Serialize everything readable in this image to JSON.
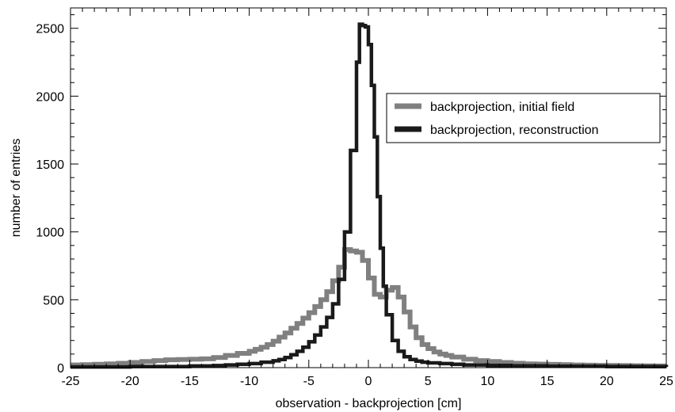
{
  "chart_data": {
    "type": "line",
    "title": "",
    "xlabel": "observation - backprojection [cm]",
    "ylabel": "number of entries",
    "xlim": [
      -25,
      25
    ],
    "ylim": [
      0,
      2650
    ],
    "x_ticks": [
      -25,
      -20,
      -15,
      -10,
      -5,
      0,
      5,
      10,
      15,
      20,
      25
    ],
    "y_ticks": [
      0,
      500,
      1000,
      1500,
      2000,
      2500
    ],
    "x_tick_labels": [
      "-25",
      "-20",
      "-15",
      "-10",
      "-5",
      "0",
      "5",
      "10",
      "15",
      "20",
      "25"
    ],
    "y_tick_labels": [
      "0",
      "500",
      "1000",
      "1500",
      "2000",
      "2500"
    ],
    "grid": false,
    "legend_position": "top-right",
    "series": [
      {
        "name": "backprojection, initial field",
        "color": "#808080",
        "step": true,
        "x": [
          -25,
          -24,
          -23,
          -22,
          -21,
          -20,
          -19,
          -18,
          -17,
          -16,
          -15,
          -14,
          -13,
          -12,
          -11,
          -10,
          -9.5,
          -9,
          -8.5,
          -8,
          -7.5,
          -7,
          -6.5,
          -6,
          -5.5,
          -5,
          -4.5,
          -4,
          -3.5,
          -3,
          -2.5,
          -2,
          -1.5,
          -1,
          -0.5,
          0,
          0.5,
          1,
          1.5,
          2,
          2.5,
          3,
          3.5,
          4,
          4.5,
          5,
          5.5,
          6,
          6.5,
          7,
          8,
          9,
          10,
          11,
          12,
          13,
          14,
          15,
          16,
          17,
          18,
          19,
          20,
          21,
          22,
          23,
          24,
          25
        ],
        "y": [
          20,
          22,
          25,
          28,
          32,
          38,
          45,
          52,
          58,
          60,
          62,
          65,
          75,
          90,
          105,
          120,
          135,
          150,
          170,
          195,
          225,
          255,
          290,
          325,
          365,
          405,
          450,
          500,
          560,
          640,
          740,
          870,
          860,
          850,
          790,
          660,
          540,
          520,
          570,
          590,
          520,
          410,
          300,
          220,
          170,
          140,
          115,
          100,
          90,
          78,
          62,
          52,
          45,
          38,
          32,
          28,
          26,
          24,
          22,
          20,
          18,
          17,
          16,
          15,
          14,
          13,
          12,
          12
        ]
      },
      {
        "name": "backprojection, reconstruction",
        "color": "#1a1a1a",
        "step": true,
        "x": [
          -25,
          -20,
          -15,
          -13,
          -12,
          -11,
          -10,
          -9,
          -8,
          -7.5,
          -7,
          -6.5,
          -6,
          -5.5,
          -5,
          -4.5,
          -4,
          -3.5,
          -3,
          -2.5,
          -2,
          -1.5,
          -1,
          -0.75,
          -0.5,
          -0.25,
          0,
          0.25,
          0.5,
          0.75,
          1,
          1.25,
          1.5,
          2,
          2.5,
          3,
          3.5,
          4,
          4.5,
          5,
          6,
          7,
          8,
          10,
          12,
          15,
          20,
          25
        ],
        "y": [
          5,
          8,
          12,
          15,
          20,
          25,
          30,
          40,
          50,
          60,
          75,
          95,
          120,
          150,
          190,
          240,
          300,
          370,
          470,
          650,
          1000,
          1600,
          2250,
          2530,
          2520,
          2510,
          2380,
          2080,
          1700,
          1260,
          880,
          600,
          390,
          200,
          120,
          80,
          60,
          48,
          40,
          35,
          30,
          25,
          20,
          16,
          13,
          10,
          8,
          5
        ]
      }
    ]
  }
}
